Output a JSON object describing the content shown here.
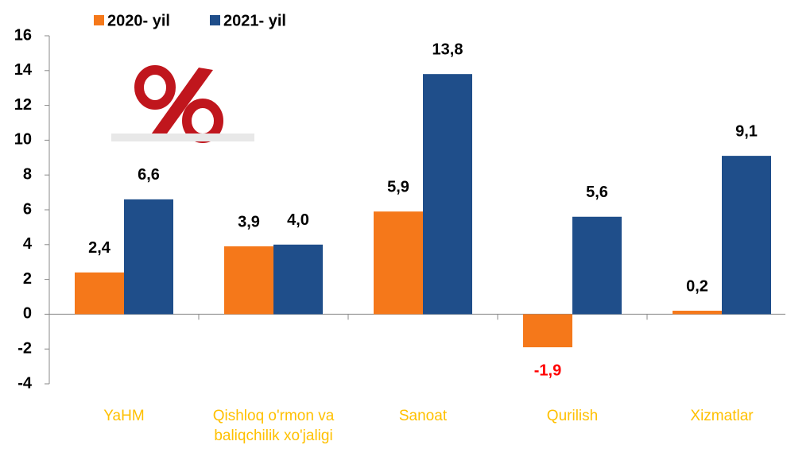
{
  "chart_data": {
    "type": "bar",
    "categories": [
      "YaHM",
      "Qishloq o'rmon va baliqchilik xo'jaligi",
      "Sanoat",
      "Qurilish",
      "Xizmatlar"
    ],
    "series": [
      {
        "name": "2020- yil",
        "color": "#f5781a",
        "values": [
          2.4,
          3.9,
          5.9,
          -1.9,
          0.2
        ],
        "value_labels": [
          "2,4",
          "3,9",
          "5,9",
          "-1,9",
          "0,2"
        ]
      },
      {
        "name": "2021- yil",
        "color": "#1f4e8a",
        "values": [
          6.6,
          4.0,
          13.8,
          5.6,
          9.1
        ],
        "value_labels": [
          "6,6",
          "4,0",
          "13,8",
          "5,6",
          "9,1"
        ]
      }
    ],
    "ylim": [
      -4,
      16
    ],
    "yticks": [
      -4,
      -2,
      0,
      2,
      4,
      6,
      8,
      10,
      12,
      14,
      16
    ],
    "category_label_color": "#ffc000",
    "value_label_color": "#000000",
    "negative_label_color": "#ff0000",
    "legend": "top"
  }
}
